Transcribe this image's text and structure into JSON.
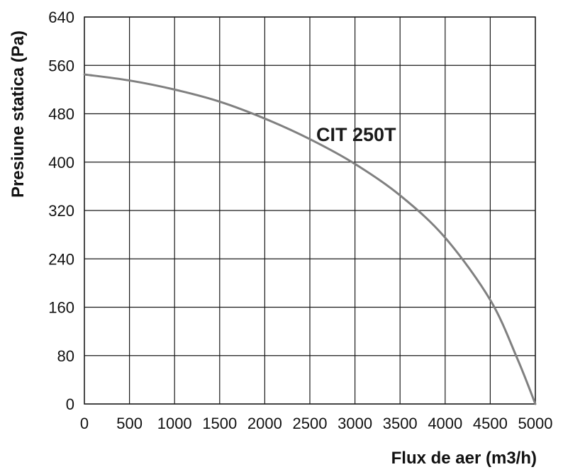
{
  "chart_data": {
    "type": "line",
    "xlabel": "Flux de aer (m3/h)",
    "ylabel": "Presiune statica (Pa)",
    "xlim": [
      0,
      5000
    ],
    "ylim": [
      0,
      640
    ],
    "x_ticks": [
      0,
      500,
      1000,
      1500,
      2000,
      2500,
      3000,
      3500,
      4000,
      4500,
      5000
    ],
    "y_ticks": [
      0,
      80,
      160,
      240,
      320,
      400,
      480,
      560,
      640
    ],
    "grid": true,
    "series": [
      {
        "name": "CIT 250T",
        "color": "#808080",
        "x": [
          0,
          500,
          1000,
          1500,
          2000,
          2500,
          3000,
          3500,
          4000,
          4500,
          4800,
          5000
        ],
        "y": [
          545,
          535,
          520,
          500,
          472,
          438,
          397,
          345,
          275,
          172,
          75,
          0
        ]
      }
    ]
  }
}
